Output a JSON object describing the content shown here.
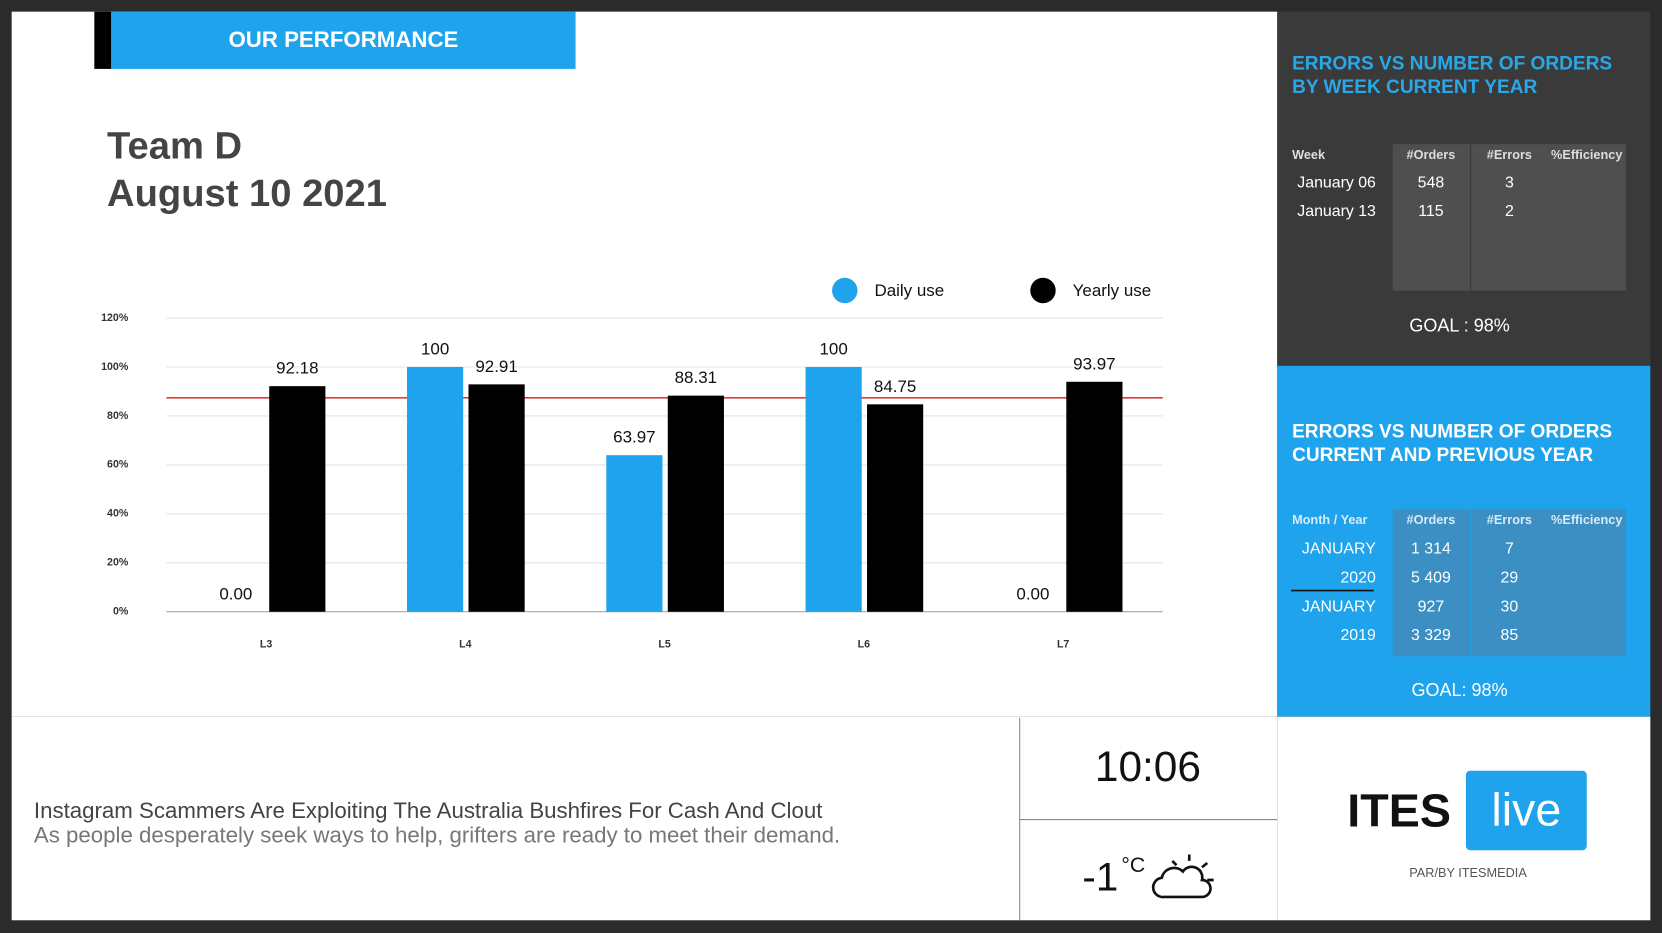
{
  "header": {
    "title": "OUR PERFORMANCE",
    "team": "Team D",
    "date": "August 10 2021"
  },
  "chart_data": {
    "type": "bar",
    "categories": [
      "L3",
      "L4",
      "L5",
      "L6",
      "L7"
    ],
    "series": [
      {
        "name": "Daily use",
        "color": "#1fa3ec",
        "values": [
          0,
          100,
          63.97,
          100,
          0
        ],
        "value_labels": [
          "0.00",
          "100",
          "63.97",
          "100",
          "0.00"
        ]
      },
      {
        "name": "Yearly use",
        "color": "#000000",
        "values": [
          92.18,
          92.91,
          88.31,
          84.75,
          93.97
        ]
      }
    ],
    "ylim": [
      0,
      120
    ],
    "yticks": [
      {
        "value": 0,
        "label": "0%"
      },
      {
        "value": 20,
        "label": "20%"
      },
      {
        "value": 40,
        "label": "40%"
      },
      {
        "value": 60,
        "label": "60%"
      },
      {
        "value": 80,
        "label": "80%"
      },
      {
        "value": 100,
        "label": "100%"
      },
      {
        "value": 120,
        "label": "120%"
      }
    ],
    "grid": true,
    "reference_line": {
      "value": 87.4,
      "color": "#e53935"
    }
  },
  "panels": [
    {
      "title": [
        "ERRORS VS NUMBER OF ORDERS",
        "BY WEEK CURRENT YEAR"
      ],
      "columns": [
        "Week",
        "#Orders",
        "#Errors",
        "%Efficiency"
      ],
      "rows": [
        [
          "January 06",
          "548",
          "3"
        ],
        [
          "January 13",
          "115",
          "2"
        ]
      ],
      "goal": "GOAL : 98%"
    },
    {
      "title": [
        "ERRORS VS NUMBER OF ORDERS",
        "CURRENT AND PREVIOUS YEAR"
      ],
      "columns": [
        "Month / Year",
        "#Orders",
        "#Errors",
        "%Efficiency"
      ],
      "rows": [
        [
          "JANUARY",
          "1 314",
          "7"
        ],
        [
          "2020",
          "5 409",
          "29"
        ],
        [
          "JANUARY",
          "927",
          "30"
        ],
        [
          "2019",
          "3 329",
          "85"
        ]
      ],
      "goal": "GOAL: 98%"
    }
  ],
  "news": {
    "headline": "Instagram Scammers Are Exploiting The Australia Bushfires For Cash And Clout",
    "summary": "As people desperately seek ways to help, grifters are ready to meet their demand."
  },
  "clock": "10:06",
  "weather": {
    "temperature": "-1",
    "unit": "°C"
  },
  "logo": {
    "brand": "ITES",
    "badge": "live",
    "tagline": "PAR/BY ITESMEDIA"
  }
}
